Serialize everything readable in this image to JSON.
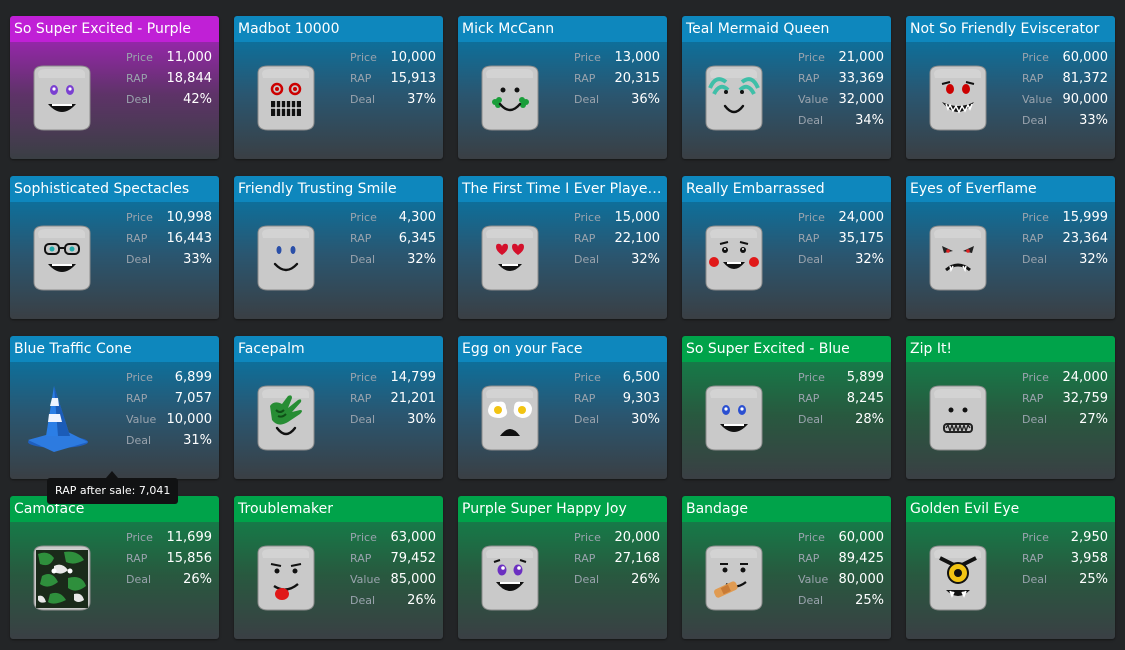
{
  "colors": {
    "header_blue": "#0e87bd",
    "header_green": "#00a34a",
    "header_purple": "#c020d6"
  },
  "tooltip": {
    "text": "RAP after sale: 7,041"
  },
  "items": [
    {
      "name": "So Super Excited - Purple",
      "theme": "purple",
      "icon": "purple-excited-face-icon",
      "stats": [
        {
          "label": "Price",
          "value": "11,000"
        },
        {
          "label": "RAP",
          "value": "18,844"
        },
        {
          "label": "Deal",
          "value": "42%"
        }
      ]
    },
    {
      "name": "Madbot 10000",
      "theme": "blue",
      "icon": "madbot-face-icon",
      "stats": [
        {
          "label": "Price",
          "value": "10,000"
        },
        {
          "label": "RAP",
          "value": "15,913"
        },
        {
          "label": "Deal",
          "value": "37%"
        }
      ]
    },
    {
      "name": "Mick McCann",
      "theme": "blue",
      "icon": "shamrock-cheeks-face-icon",
      "stats": [
        {
          "label": "Price",
          "value": "13,000"
        },
        {
          "label": "RAP",
          "value": "20,315"
        },
        {
          "label": "Deal",
          "value": "36%"
        }
      ]
    },
    {
      "name": "Teal Mermaid Queen",
      "theme": "blue",
      "icon": "teal-mermaid-face-icon",
      "stats": [
        {
          "label": "Price",
          "value": "21,000"
        },
        {
          "label": "RAP",
          "value": "33,369"
        },
        {
          "label": "Value",
          "value": "32,000"
        },
        {
          "label": "Deal",
          "value": "34%"
        }
      ]
    },
    {
      "name": "Not So Friendly Eviscerator",
      "theme": "blue",
      "icon": "eviscerator-face-icon",
      "stats": [
        {
          "label": "Price",
          "value": "60,000"
        },
        {
          "label": "RAP",
          "value": "81,372"
        },
        {
          "label": "Value",
          "value": "90,000"
        },
        {
          "label": "Deal",
          "value": "33%"
        }
      ]
    },
    {
      "name": "Sophisticated Spectacles",
      "theme": "blue",
      "icon": "spectacles-face-icon",
      "stats": [
        {
          "label": "Price",
          "value": "10,998"
        },
        {
          "label": "RAP",
          "value": "16,443"
        },
        {
          "label": "Deal",
          "value": "33%"
        }
      ]
    },
    {
      "name": "Friendly Trusting Smile",
      "theme": "blue",
      "icon": "trusting-smile-face-icon",
      "stats": [
        {
          "label": "Price",
          "value": "4,300"
        },
        {
          "label": "RAP",
          "value": "6,345"
        },
        {
          "label": "Deal",
          "value": "32%"
        }
      ]
    },
    {
      "name": "The First Time I Ever Played...",
      "theme": "blue",
      "icon": "heart-eyes-face-icon",
      "stats": [
        {
          "label": "Price",
          "value": "15,000"
        },
        {
          "label": "RAP",
          "value": "22,100"
        },
        {
          "label": "Deal",
          "value": "32%"
        }
      ]
    },
    {
      "name": "Really Embarrassed",
      "theme": "blue",
      "icon": "embarrassed-face-icon",
      "stats": [
        {
          "label": "Price",
          "value": "24,000"
        },
        {
          "label": "RAP",
          "value": "35,175"
        },
        {
          "label": "Deal",
          "value": "32%"
        }
      ]
    },
    {
      "name": "Eyes of Everflame",
      "theme": "blue",
      "icon": "everflame-face-icon",
      "stats": [
        {
          "label": "Price",
          "value": "15,999"
        },
        {
          "label": "RAP",
          "value": "23,364"
        },
        {
          "label": "Deal",
          "value": "32%"
        }
      ]
    },
    {
      "name": "Blue Traffic Cone",
      "theme": "blue",
      "icon": "traffic-cone-icon",
      "stats": [
        {
          "label": "Price",
          "value": "6,899"
        },
        {
          "label": "RAP",
          "value": "7,057"
        },
        {
          "label": "Value",
          "value": "10,000"
        },
        {
          "label": "Deal",
          "value": "31%"
        }
      ]
    },
    {
      "name": "Facepalm",
      "theme": "blue",
      "icon": "facepalm-face-icon",
      "stats": [
        {
          "label": "Price",
          "value": "14,799"
        },
        {
          "label": "RAP",
          "value": "21,201"
        },
        {
          "label": "Deal",
          "value": "30%"
        }
      ]
    },
    {
      "name": "Egg on your Face",
      "theme": "blue",
      "icon": "egg-face-icon",
      "stats": [
        {
          "label": "Price",
          "value": "6,500"
        },
        {
          "label": "RAP",
          "value": "9,303"
        },
        {
          "label": "Deal",
          "value": "30%"
        }
      ]
    },
    {
      "name": "So Super Excited - Blue",
      "theme": "green",
      "icon": "blue-excited-face-icon",
      "stats": [
        {
          "label": "Price",
          "value": "5,899"
        },
        {
          "label": "RAP",
          "value": "8,245"
        },
        {
          "label": "Deal",
          "value": "28%"
        }
      ]
    },
    {
      "name": "Zip It!",
      "theme": "green",
      "icon": "zip-it-face-icon",
      "stats": [
        {
          "label": "Price",
          "value": "24,000"
        },
        {
          "label": "RAP",
          "value": "32,759"
        },
        {
          "label": "Deal",
          "value": "27%"
        }
      ]
    },
    {
      "name": "Camoface",
      "theme": "green",
      "icon": "camo-face-icon",
      "stats": [
        {
          "label": "Price",
          "value": "11,699"
        },
        {
          "label": "RAP",
          "value": "15,856"
        },
        {
          "label": "Deal",
          "value": "26%"
        }
      ]
    },
    {
      "name": "Troublemaker",
      "theme": "green",
      "icon": "troublemaker-face-icon",
      "stats": [
        {
          "label": "Price",
          "value": "63,000"
        },
        {
          "label": "RAP",
          "value": "79,452"
        },
        {
          "label": "Value",
          "value": "85,000"
        },
        {
          "label": "Deal",
          "value": "26%"
        }
      ]
    },
    {
      "name": "Purple Super Happy Joy",
      "theme": "green",
      "icon": "purple-happy-joy-face-icon",
      "stats": [
        {
          "label": "Price",
          "value": "20,000"
        },
        {
          "label": "RAP",
          "value": "27,168"
        },
        {
          "label": "Deal",
          "value": "26%"
        }
      ]
    },
    {
      "name": "Bandage",
      "theme": "green",
      "icon": "bandage-face-icon",
      "stats": [
        {
          "label": "Price",
          "value": "60,000"
        },
        {
          "label": "RAP",
          "value": "89,425"
        },
        {
          "label": "Value",
          "value": "80,000"
        },
        {
          "label": "Deal",
          "value": "25%"
        }
      ]
    },
    {
      "name": "Golden Evil Eye",
      "theme": "green",
      "icon": "golden-evil-eye-face-icon",
      "stats": [
        {
          "label": "Price",
          "value": "2,950"
        },
        {
          "label": "RAP",
          "value": "3,958"
        },
        {
          "label": "Deal",
          "value": "25%"
        }
      ]
    }
  ]
}
